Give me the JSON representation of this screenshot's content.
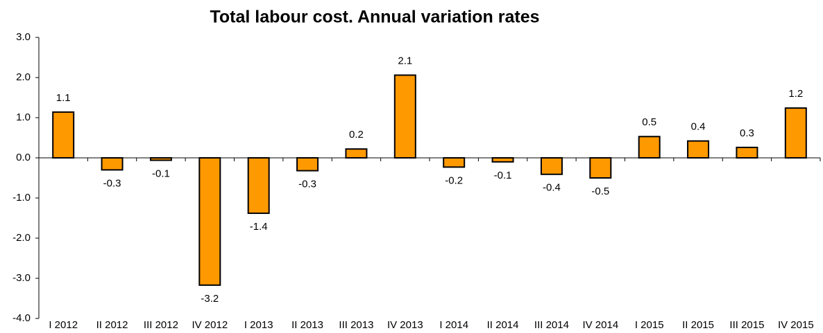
{
  "chart_data": {
    "type": "bar",
    "title": "Total labour cost. Annual variation rates",
    "categories": [
      "I 2012",
      "II 2012",
      "III 2012",
      "IV 2012",
      "I 2013",
      "II 2013",
      "III 2013",
      "IV 2013",
      "I 2014",
      "II 2014",
      "III 2014",
      "IV 2014",
      "I 2015",
      "II 2015",
      "III 2015",
      "IV 2015"
    ],
    "values": [
      1.14,
      -0.3,
      -0.06,
      -3.17,
      -1.38,
      -0.32,
      0.22,
      2.06,
      -0.23,
      -0.1,
      -0.41,
      -0.5,
      0.53,
      0.42,
      0.26,
      1.24
    ],
    "value_labels": [
      "1.1",
      "-0.3",
      "-0.1",
      "-3.2",
      "-1.4",
      "-0.3",
      "0.2",
      "2.1",
      "-0.2",
      "-0.1",
      "-0.4",
      "-0.5",
      "0.5",
      "0.4",
      "0.3",
      "1.2"
    ],
    "color": "#ff9900",
    "ylim": [
      -4,
      3
    ],
    "yticks": [
      {
        "value": -4,
        "label": "-4.0"
      },
      {
        "value": -3,
        "label": "-3.0"
      },
      {
        "value": -2,
        "label": "-2.0"
      },
      {
        "value": -1,
        "label": "-1.0"
      },
      {
        "value": 0,
        "label": "0.0"
      },
      {
        "value": 1,
        "label": "1.0"
      },
      {
        "value": 2,
        "label": "2.0"
      },
      {
        "value": 3,
        "label": "3.0"
      }
    ],
    "grid": false
  }
}
